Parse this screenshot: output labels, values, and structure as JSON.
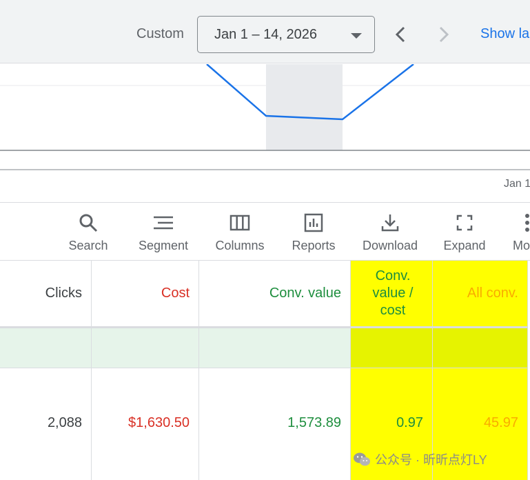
{
  "header": {
    "range_label": "Custom",
    "date_range": "Jan 1 – 14, 2026",
    "show_link": "Show la"
  },
  "chart": {
    "x_tick": "Jan 1",
    "line_color": "#1a73e8"
  },
  "toolbar": {
    "items": [
      {
        "label": "Search",
        "icon": "search-icon"
      },
      {
        "label": "Segment",
        "icon": "segment-icon"
      },
      {
        "label": "Columns",
        "icon": "columns-icon"
      },
      {
        "label": "Reports",
        "icon": "reports-icon"
      },
      {
        "label": "Download",
        "icon": "download-icon"
      },
      {
        "label": "Expand",
        "icon": "expand-icon"
      },
      {
        "label": "Mo",
        "icon": "more-icon"
      }
    ]
  },
  "table": {
    "columns": [
      {
        "header": "Clicks",
        "color": "#3c4043",
        "value": "2,088",
        "value_color": "#3c4043"
      },
      {
        "header": "Cost",
        "color": "#d93025",
        "value": "$1,630.50",
        "value_color": "#d93025"
      },
      {
        "header": "Conv. value",
        "color": "#1e8e3e",
        "value": "1,573.89",
        "value_color": "#1e8e3e"
      },
      {
        "header": "Conv. value / cost",
        "color": "#1e8e3e",
        "value": "0.97",
        "value_color": "#1e8e3e",
        "highlighted": true
      },
      {
        "header": "All conv.",
        "color": "#f9ab00",
        "value": "45.97",
        "value_color": "#f9ab00",
        "highlighted": true
      }
    ],
    "highlight_color": "#ffff00"
  },
  "watermark": {
    "text": "公众号 · 昕昕点灯LY"
  }
}
